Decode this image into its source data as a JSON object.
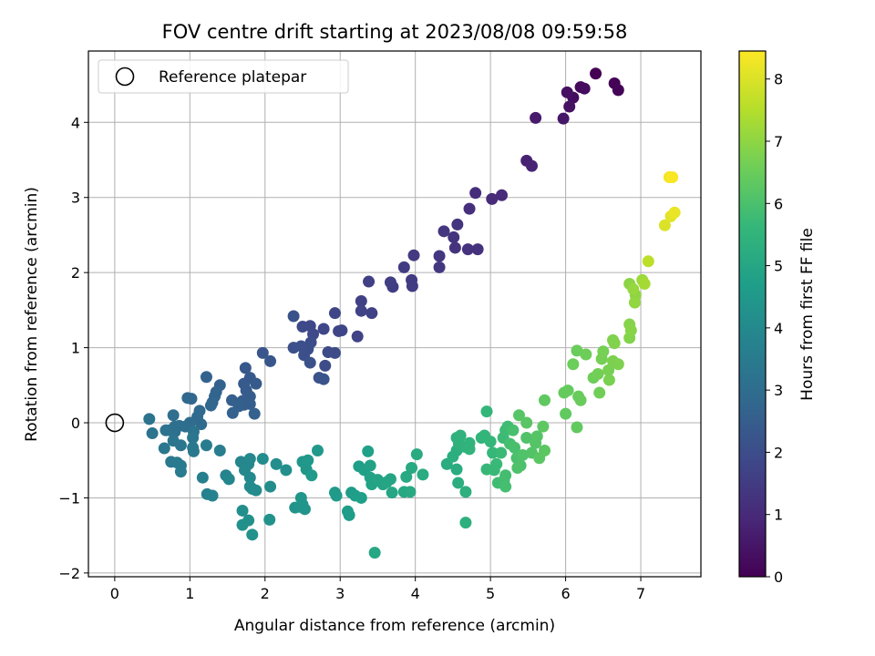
{
  "chart_data": {
    "type": "scatter",
    "title": "FOV centre drift starting at 2023/08/08 09:59:58",
    "xlabel": "Angular distance from reference (arcmin)",
    "ylabel": "Rotation from reference (arcmin)",
    "xlim": [
      -0.35,
      7.8
    ],
    "ylim": [
      -2.05,
      4.95
    ],
    "xticks": [
      0,
      1,
      2,
      3,
      4,
      5,
      6,
      7
    ],
    "yticks": [
      -2,
      -1,
      0,
      1,
      2,
      3,
      4
    ],
    "grid": true,
    "legend": {
      "position": "top-left",
      "entries": [
        "Reference platepar"
      ]
    },
    "reference_point": {
      "x": 0,
      "y": 0
    },
    "colorbar": {
      "label": "Hours from first FF file",
      "colormap": "viridis",
      "range": [
        0,
        8.45
      ],
      "ticks": [
        0,
        1,
        2,
        3,
        4,
        5,
        6,
        7,
        8
      ]
    },
    "colormap_stops": [
      "#440154",
      "#482878",
      "#3e4989",
      "#31688e",
      "#26828e",
      "#1f9e89",
      "#35b779",
      "#6ece58",
      "#b5de2b",
      "#fde725"
    ],
    "points": [
      [
        6.4,
        4.65,
        0.0
      ],
      [
        6.65,
        4.52,
        0.05
      ],
      [
        6.7,
        4.43,
        0.1
      ],
      [
        6.2,
        4.47,
        0.2
      ],
      [
        6.25,
        4.45,
        0.25
      ],
      [
        6.1,
        4.33,
        0.3
      ],
      [
        6.02,
        4.4,
        0.35
      ],
      [
        6.05,
        4.21,
        0.4
      ],
      [
        5.97,
        4.05,
        0.5
      ],
      [
        5.6,
        4.06,
        0.6
      ],
      [
        5.48,
        3.49,
        0.8
      ],
      [
        5.55,
        3.42,
        0.85
      ],
      [
        5.15,
        3.03,
        1.0
      ],
      [
        5.02,
        2.98,
        1.05
      ],
      [
        4.8,
        3.06,
        1.1
      ],
      [
        4.72,
        2.85,
        1.15
      ],
      [
        4.7,
        2.31,
        1.2
      ],
      [
        4.83,
        2.31,
        1.22
      ],
      [
        4.53,
        2.33,
        1.25
      ],
      [
        4.51,
        2.47,
        1.28
      ],
      [
        4.56,
        2.64,
        1.3
      ],
      [
        4.38,
        2.55,
        1.33
      ],
      [
        4.32,
        2.22,
        1.36
      ],
      [
        4.32,
        2.07,
        1.4
      ],
      [
        3.98,
        2.23,
        1.45
      ],
      [
        3.95,
        1.9,
        1.48
      ],
      [
        3.96,
        1.82,
        1.5
      ],
      [
        3.85,
        2.07,
        1.52
      ],
      [
        3.7,
        1.81,
        1.55
      ],
      [
        3.67,
        1.87,
        1.57
      ],
      [
        3.38,
        1.88,
        1.62
      ],
      [
        3.28,
        1.62,
        1.65
      ],
      [
        3.42,
        1.46,
        1.68
      ],
      [
        3.28,
        1.49,
        1.7
      ],
      [
        3.23,
        1.15,
        1.72
      ],
      [
        2.98,
        1.22,
        1.75
      ],
      [
        2.93,
        1.46,
        1.78
      ],
      [
        3.02,
        1.23,
        1.8
      ],
      [
        2.78,
        1.25,
        1.82
      ],
      [
        2.6,
        1.29,
        1.85
      ],
      [
        2.5,
        1.28,
        1.88
      ],
      [
        2.64,
        1.18,
        1.9
      ],
      [
        2.93,
        0.93,
        1.93
      ],
      [
        2.84,
        0.94,
        1.95
      ],
      [
        2.8,
        0.76,
        1.97
      ],
      [
        2.61,
        1.07,
        2.0
      ],
      [
        2.57,
        0.98,
        2.03
      ],
      [
        2.48,
        1.02,
        2.05
      ],
      [
        2.38,
        1.0,
        2.08
      ],
      [
        2.52,
        0.9,
        2.1
      ],
      [
        2.6,
        0.8,
        2.12
      ],
      [
        2.38,
        1.42,
        2.15
      ],
      [
        2.72,
        0.6,
        2.18
      ],
      [
        2.78,
        0.58,
        2.2
      ],
      [
        1.97,
        0.93,
        2.25
      ],
      [
        2.07,
        0.82,
        2.28
      ],
      [
        1.74,
        0.73,
        2.32
      ],
      [
        1.8,
        0.6,
        2.35
      ],
      [
        1.88,
        0.52,
        2.38
      ],
      [
        1.72,
        0.52,
        2.4
      ],
      [
        1.75,
        0.43,
        2.43
      ],
      [
        1.8,
        0.35,
        2.45
      ],
      [
        1.7,
        0.29,
        2.48
      ],
      [
        1.8,
        0.25,
        2.5
      ],
      [
        1.72,
        0.24,
        2.52
      ],
      [
        1.56,
        0.3,
        2.55
      ],
      [
        1.65,
        0.22,
        2.57
      ],
      [
        1.86,
        0.12,
        2.6
      ],
      [
        1.57,
        0.13,
        2.62
      ],
      [
        1.4,
        0.5,
        2.65
      ],
      [
        1.22,
        0.61,
        2.68
      ],
      [
        1.35,
        0.41,
        2.7
      ],
      [
        1.33,
        0.35,
        2.72
      ],
      [
        1.3,
        0.27,
        2.75
      ],
      [
        1.28,
        0.23,
        2.78
      ],
      [
        0.97,
        0.33,
        2.82
      ],
      [
        1.02,
        0.32,
        2.85
      ],
      [
        1.13,
        0.16,
        2.88
      ],
      [
        1.1,
        0.08,
        2.9
      ],
      [
        1.15,
        -0.02,
        2.93
      ],
      [
        1.0,
        0.0,
        2.96
      ],
      [
        0.94,
        -0.05,
        3.0
      ],
      [
        0.78,
        0.1,
        3.03
      ],
      [
        0.86,
        -0.04,
        3.06
      ],
      [
        0.8,
        -0.05,
        3.09
      ],
      [
        0.8,
        -0.12,
        3.12
      ],
      [
        0.73,
        -0.1,
        3.15
      ],
      [
        0.68,
        -0.1,
        3.18
      ],
      [
        0.46,
        0.05,
        3.2
      ],
      [
        0.5,
        -0.14,
        3.22
      ],
      [
        1.05,
        -0.12,
        3.25
      ],
      [
        1.04,
        -0.2,
        3.28
      ],
      [
        0.78,
        -0.24,
        3.3
      ],
      [
        0.88,
        -0.3,
        3.32
      ],
      [
        0.66,
        -0.34,
        3.35
      ],
      [
        1.04,
        -0.33,
        3.38
      ],
      [
        1.05,
        -0.38,
        3.4
      ],
      [
        0.75,
        -0.52,
        3.42
      ],
      [
        0.83,
        -0.53,
        3.45
      ],
      [
        0.88,
        -0.57,
        3.48
      ],
      [
        0.88,
        -0.65,
        3.5
      ],
      [
        1.22,
        -0.3,
        3.55
      ],
      [
        1.4,
        -0.37,
        3.6
      ],
      [
        1.17,
        -0.73,
        3.65
      ],
      [
        1.23,
        -0.95,
        3.7
      ],
      [
        1.3,
        -0.97,
        3.75
      ],
      [
        1.48,
        -0.7,
        3.8
      ],
      [
        1.52,
        -0.75,
        3.85
      ],
      [
        1.68,
        -0.52,
        3.9
      ],
      [
        1.78,
        -0.55,
        3.92
      ],
      [
        1.73,
        -0.63,
        3.95
      ],
      [
        1.8,
        -0.48,
        3.97
      ],
      [
        1.8,
        -0.73,
        4.0
      ],
      [
        1.8,
        -0.85,
        4.03
      ],
      [
        1.83,
        -0.88,
        4.05
      ],
      [
        1.88,
        -0.9,
        4.08
      ],
      [
        1.97,
        -0.48,
        4.1
      ],
      [
        2.07,
        -0.85,
        4.13
      ],
      [
        2.15,
        -0.55,
        4.15
      ],
      [
        2.28,
        -0.63,
        4.18
      ],
      [
        1.7,
        -1.17,
        4.2
      ],
      [
        1.78,
        -1.3,
        4.22
      ],
      [
        1.7,
        -1.36,
        4.25
      ],
      [
        1.83,
        -1.49,
        4.28
      ],
      [
        2.06,
        -1.29,
        4.3
      ],
      [
        2.4,
        -1.13,
        4.33
      ],
      [
        2.47,
        -1.12,
        4.35
      ],
      [
        2.5,
        -1.09,
        4.38
      ],
      [
        2.53,
        -1.15,
        4.4
      ],
      [
        2.48,
        -1.0,
        4.42
      ],
      [
        2.55,
        -0.62,
        4.45
      ],
      [
        2.5,
        -0.52,
        4.47
      ],
      [
        2.57,
        -0.5,
        4.5
      ],
      [
        2.7,
        -0.37,
        4.52
      ],
      [
        2.62,
        -0.7,
        4.55
      ],
      [
        2.93,
        -0.93,
        4.58
      ],
      [
        2.95,
        -0.97,
        4.6
      ],
      [
        3.15,
        -0.93,
        4.62
      ],
      [
        3.1,
        -1.18,
        4.65
      ],
      [
        3.12,
        -1.23,
        4.67
      ],
      [
        3.2,
        -0.97,
        4.7
      ],
      [
        3.28,
        -1.0,
        4.72
      ],
      [
        3.25,
        -0.58,
        4.75
      ],
      [
        3.32,
        -0.63,
        4.78
      ],
      [
        3.37,
        -0.38,
        4.8
      ],
      [
        3.4,
        -0.57,
        4.82
      ],
      [
        3.4,
        -0.73,
        4.85
      ],
      [
        3.42,
        -0.82,
        4.88
      ],
      [
        3.5,
        -0.76,
        4.9
      ],
      [
        3.57,
        -0.82,
        4.93
      ],
      [
        3.62,
        -0.79,
        4.95
      ],
      [
        3.67,
        -0.75,
        4.97
      ],
      [
        3.69,
        -0.93,
        5.0
      ],
      [
        3.46,
        -1.73,
        5.03
      ],
      [
        3.85,
        -0.92,
        5.05
      ],
      [
        3.88,
        -0.72,
        5.07
      ],
      [
        3.93,
        -0.92,
        5.1
      ],
      [
        3.95,
        -0.6,
        5.12
      ],
      [
        4.02,
        -0.42,
        5.15
      ],
      [
        4.1,
        -0.69,
        5.18
      ],
      [
        4.42,
        -0.55,
        5.2
      ],
      [
        4.55,
        -0.62,
        5.22
      ],
      [
        4.57,
        -0.8,
        5.25
      ],
      [
        4.55,
        -0.37,
        5.28
      ],
      [
        4.5,
        -0.45,
        5.3
      ],
      [
        4.67,
        -0.92,
        5.32
      ],
      [
        4.67,
        -1.33,
        5.35
      ],
      [
        4.58,
        -0.28,
        5.38
      ],
      [
        4.55,
        -0.2,
        5.4
      ],
      [
        4.6,
        -0.17,
        5.42
      ],
      [
        4.66,
        -0.32,
        5.45
      ],
      [
        4.72,
        -0.27,
        5.47
      ],
      [
        4.72,
        -0.35,
        5.5
      ],
      [
        4.88,
        -0.2,
        5.52
      ],
      [
        4.92,
        -0.17,
        5.55
      ],
      [
        4.95,
        0.15,
        5.57
      ],
      [
        5.0,
        -0.25,
        5.6
      ],
      [
        5.03,
        -0.4,
        5.62
      ],
      [
        4.95,
        -0.62,
        5.65
      ],
      [
        5.05,
        -0.63,
        5.68
      ],
      [
        5.08,
        -0.55,
        5.7
      ],
      [
        5.14,
        -0.4,
        5.72
      ],
      [
        5.17,
        -0.2,
        5.75
      ],
      [
        5.2,
        -0.1,
        5.78
      ],
      [
        5.23,
        -0.05,
        5.8
      ],
      [
        5.1,
        -0.8,
        5.82
      ],
      [
        5.18,
        -0.77,
        5.85
      ],
      [
        5.2,
        -0.7,
        5.88
      ],
      [
        5.2,
        -0.85,
        5.9
      ],
      [
        5.26,
        -0.28,
        5.92
      ],
      [
        5.3,
        -0.1,
        5.95
      ],
      [
        5.32,
        -0.33,
        5.97
      ],
      [
        5.35,
        -0.47,
        6.0
      ],
      [
        5.4,
        -0.57,
        6.02
      ],
      [
        5.36,
        -0.6,
        6.05
      ],
      [
        5.43,
        -0.43,
        6.07
      ],
      [
        5.48,
        -0.2,
        6.1
      ],
      [
        5.55,
        -0.4,
        6.12
      ],
      [
        5.6,
        -0.27,
        6.15
      ],
      [
        5.62,
        -0.18,
        6.17
      ],
      [
        5.38,
        0.1,
        6.2
      ],
      [
        5.48,
        0.0,
        6.22
      ],
      [
        5.65,
        -0.47,
        6.25
      ],
      [
        5.72,
        -0.37,
        6.28
      ],
      [
        5.7,
        -0.05,
        6.3
      ],
      [
        5.72,
        0.3,
        6.32
      ],
      [
        6.0,
        0.12,
        6.35
      ],
      [
        6.15,
        -0.06,
        6.38
      ],
      [
        6.03,
        0.43,
        6.4
      ],
      [
        5.98,
        0.4,
        6.42
      ],
      [
        6.17,
        0.35,
        6.45
      ],
      [
        6.2,
        0.3,
        6.47
      ],
      [
        6.15,
        0.96,
        6.5
      ],
      [
        6.1,
        0.78,
        6.52
      ],
      [
        6.27,
        0.91,
        6.55
      ],
      [
        6.37,
        0.6,
        6.57
      ],
      [
        6.45,
        0.4,
        6.6
      ],
      [
        6.43,
        0.65,
        6.62
      ],
      [
        6.48,
        0.85,
        6.65
      ],
      [
        6.5,
        0.95,
        6.67
      ],
      [
        6.57,
        0.7,
        6.7
      ],
      [
        6.58,
        0.57,
        6.72
      ],
      [
        6.63,
        0.82,
        6.75
      ],
      [
        6.7,
        0.78,
        6.77
      ],
      [
        6.63,
        1.1,
        6.8
      ],
      [
        6.65,
        1.06,
        6.82
      ],
      [
        6.85,
        1.13,
        6.85
      ],
      [
        6.85,
        1.31,
        6.87
      ],
      [
        6.87,
        1.23,
        6.9
      ],
      [
        6.85,
        1.85,
        6.95
      ],
      [
        6.93,
        1.7,
        7.0
      ],
      [
        6.92,
        1.6,
        7.05
      ],
      [
        6.9,
        1.78,
        7.1
      ],
      [
        7.02,
        1.9,
        7.2
      ],
      [
        7.05,
        1.85,
        7.3
      ],
      [
        7.1,
        2.15,
        7.6
      ],
      [
        7.32,
        2.63,
        8.0
      ],
      [
        7.4,
        2.75,
        8.1
      ],
      [
        7.45,
        2.8,
        8.2
      ],
      [
        7.38,
        3.27,
        8.3
      ],
      [
        7.42,
        3.27,
        8.4
      ]
    ]
  }
}
